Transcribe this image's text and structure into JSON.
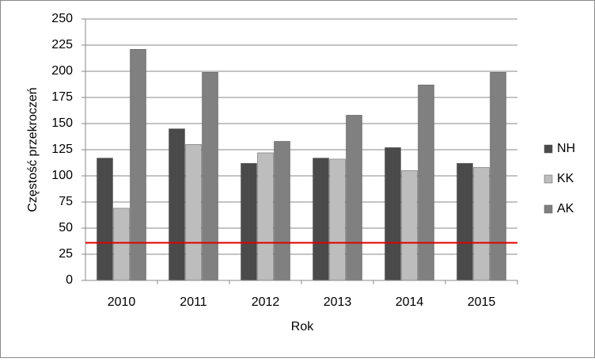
{
  "chart_data": {
    "type": "bar",
    "x_label": "Rok",
    "y_label": "Częstość przekroczeń",
    "categories": [
      "2010",
      "2011",
      "2012",
      "2013",
      "2014",
      "2015"
    ],
    "series": [
      {
        "name": "NH",
        "color": "#4a4a4a",
        "values": [
          117,
          145,
          112,
          117,
          127,
          112
        ]
      },
      {
        "name": "KK",
        "color": "#bdbdbd",
        "values": [
          69,
          130,
          122,
          116,
          105,
          108
        ]
      },
      {
        "name": "AK",
        "color": "#808080",
        "values": [
          221,
          199,
          133,
          158,
          187,
          199
        ]
      }
    ],
    "reference_line": {
      "color": "#e00000",
      "value": 36
    },
    "ylim": [
      0,
      250
    ],
    "yticks": [
      0,
      25,
      50,
      75,
      100,
      125,
      150,
      175,
      200,
      225,
      250
    ],
    "grid": true,
    "legend": "right"
  }
}
